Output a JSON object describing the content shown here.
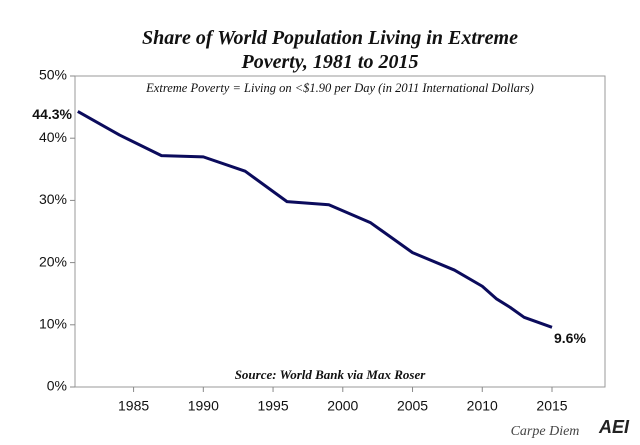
{
  "chart_data": {
    "type": "line",
    "title": "Share of World Population Living in Extreme Poverty, 1981 to 2015",
    "subtitle": "Extreme Poverty = Living on <$1.90 per Day (in 2011 International Dollars)",
    "source": "Source: World Bank via Max Roser",
    "footer": "Carpe Diem",
    "logo": "AEI",
    "x": [
      1981,
      1984,
      1987,
      1990,
      1993,
      1996,
      1999,
      2002,
      2005,
      2008,
      2010,
      2011,
      2012,
      2013,
      2015
    ],
    "series": [
      {
        "name": "Extreme poverty share",
        "color": "#0b0b5c",
        "values": [
          44.3,
          40.5,
          37.2,
          37.0,
          34.7,
          29.8,
          29.3,
          26.4,
          21.6,
          18.8,
          16.2,
          14.2,
          12.8,
          11.2,
          9.6
        ],
        "value_labels": [
          "44.3%",
          null,
          null,
          null,
          null,
          null,
          null,
          null,
          null,
          null,
          null,
          null,
          null,
          null,
          "9.6%"
        ]
      }
    ],
    "xlim": [
      1980.8,
      2018.8
    ],
    "xticks": [
      1985,
      1990,
      1995,
      2000,
      2005,
      2010,
      2015
    ],
    "ylim": [
      0,
      50
    ],
    "yticks": [
      {
        "value": 0,
        "label": "0%"
      },
      {
        "value": 10,
        "label": "10%"
      },
      {
        "value": 20,
        "label": "20%"
      },
      {
        "value": 30,
        "label": "30%"
      },
      {
        "value": 40,
        "label": "40%"
      },
      {
        "value": 50,
        "label": "50%"
      }
    ],
    "grid": false
  }
}
